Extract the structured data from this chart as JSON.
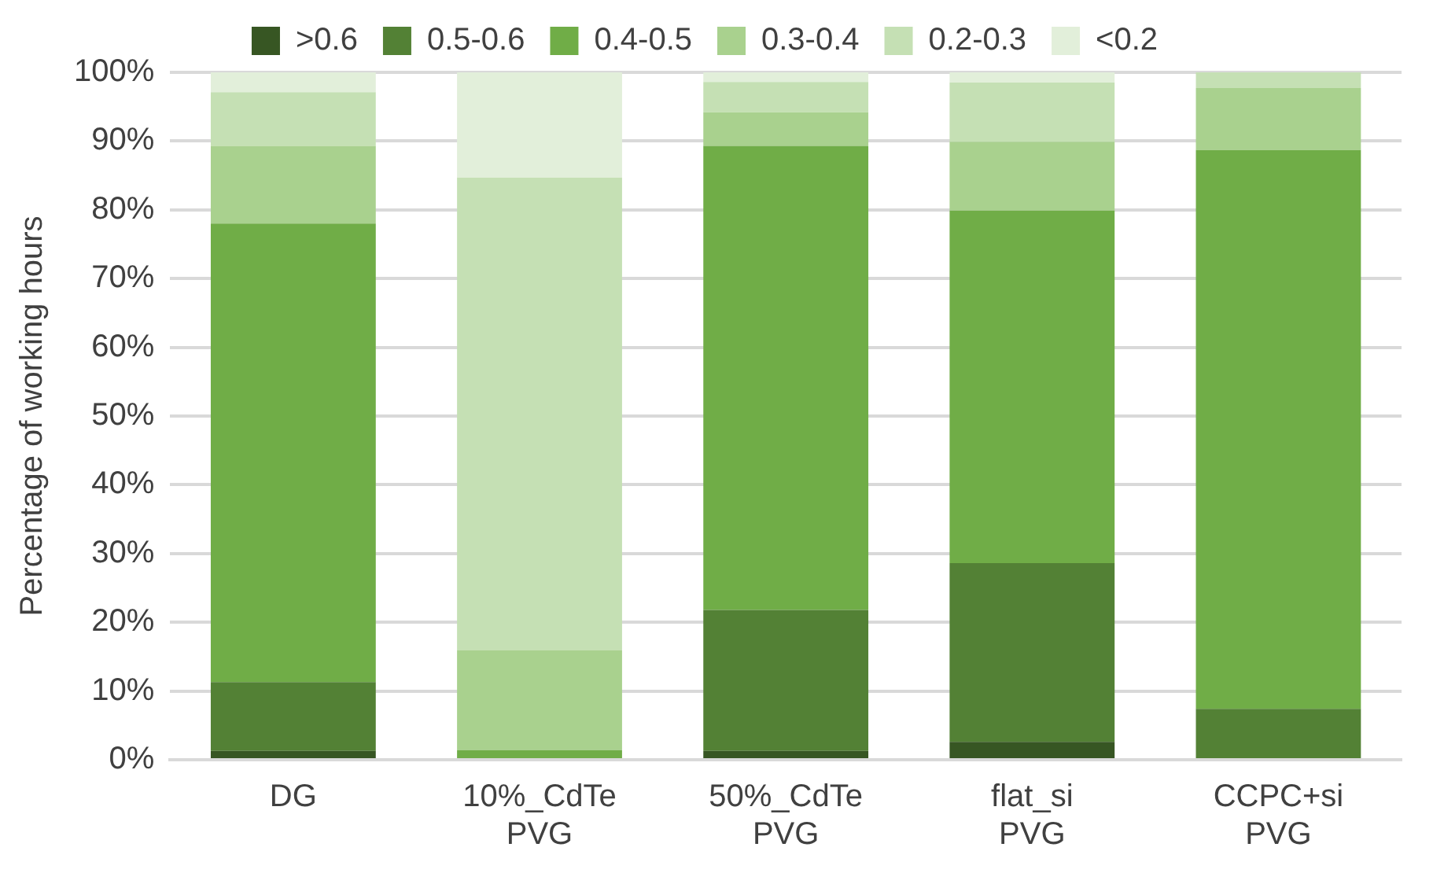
{
  "chart_data": {
    "type": "bar",
    "stacked": true,
    "ylabel": "Percentage of working hours",
    "categories": [
      "DG",
      "10%_CdTe\nPVG",
      "50%_CdTe\nPVG",
      "flat_si\nPVG",
      "CCPC+si\nPVG"
    ],
    "series": [
      {
        "name": ">0.6",
        "color": "#375623",
        "values": [
          1.3,
          0,
          1.3,
          2.6,
          0
        ]
      },
      {
        "name": "0.5-0.6",
        "color": "#538135",
        "values": [
          10,
          0,
          20.5,
          26,
          7.4
        ]
      },
      {
        "name": "0.4-0.5",
        "color": "#70ad47",
        "values": [
          66.7,
          1.4,
          67.5,
          51.3,
          81.3
        ]
      },
      {
        "name": "0.3-0.4",
        "color": "#a9d18e",
        "values": [
          11.3,
          14.5,
          4.9,
          10,
          9
        ]
      },
      {
        "name": "0.2-0.3",
        "color": "#c5e0b4",
        "values": [
          7.8,
          68.8,
          4.4,
          8.6,
          2.3
        ]
      },
      {
        "name": "<0.2",
        "color": "#e2efda",
        "values": [
          2.9,
          15.3,
          1.4,
          1.5,
          0
        ]
      }
    ],
    "ylim": [
      0,
      100
    ],
    "yticks": [
      {
        "value": 0,
        "label": "0%"
      },
      {
        "value": 10,
        "label": "10%"
      },
      {
        "value": 20,
        "label": "20%"
      },
      {
        "value": 30,
        "label": "30%"
      },
      {
        "value": 40,
        "label": "40%"
      },
      {
        "value": 50,
        "label": "50%"
      },
      {
        "value": 60,
        "label": "60%"
      },
      {
        "value": 70,
        "label": "70%"
      },
      {
        "value": 80,
        "label": "80%"
      },
      {
        "value": 90,
        "label": "90%"
      },
      {
        "value": 100,
        "label": "100%"
      }
    ],
    "grid": "y",
    "legend": "top"
  }
}
